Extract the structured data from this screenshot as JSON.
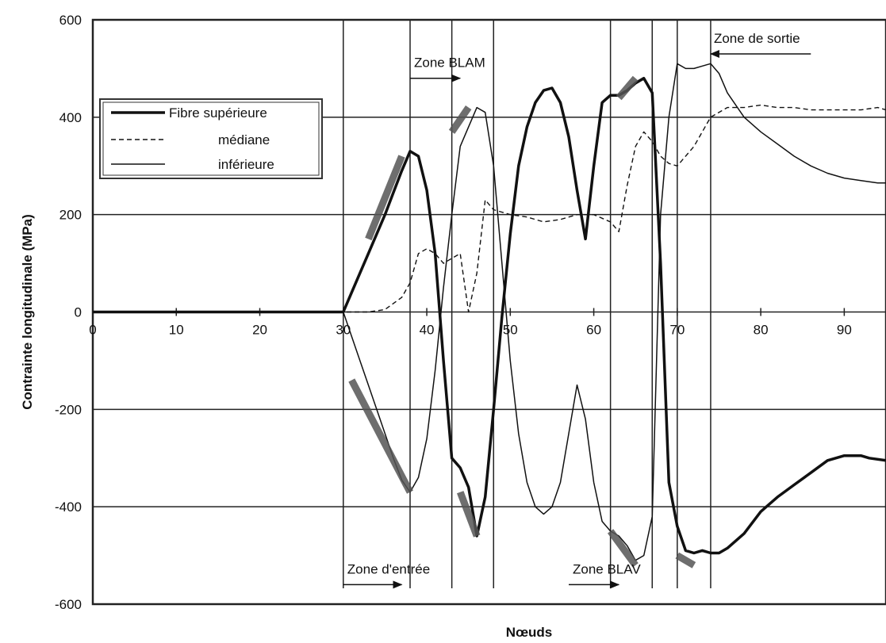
{
  "chart_data": {
    "type": "line",
    "title": "",
    "xlabel": "Nœuds",
    "ylabel": "Contrainte longitudinale (MPa)",
    "xlim": [
      0,
      95
    ],
    "ylim": [
      -600,
      600
    ],
    "x_ticks": [
      0,
      10,
      20,
      30,
      40,
      50,
      60,
      70,
      80,
      90
    ],
    "y_ticks": [
      600,
      400,
      200,
      0,
      -200,
      -400,
      -600
    ],
    "grid": "horizontal",
    "legend_position": "top-left",
    "series": [
      {
        "name": "Fibre supérieure",
        "style": "thick-solid",
        "color": "#111111",
        "points": [
          [
            0,
            0
          ],
          [
            29,
            0
          ],
          [
            30,
            0
          ],
          [
            31,
            40
          ],
          [
            32,
            80
          ],
          [
            33,
            120
          ],
          [
            34,
            160
          ],
          [
            35,
            200
          ],
          [
            36,
            245
          ],
          [
            37,
            290
          ],
          [
            38,
            330
          ],
          [
            39,
            320
          ],
          [
            40,
            250
          ],
          [
            41,
            120
          ],
          [
            42,
            -100
          ],
          [
            43,
            -300
          ],
          [
            44,
            -320
          ],
          [
            45,
            -360
          ],
          [
            46,
            -460
          ],
          [
            47,
            -380
          ],
          [
            48,
            -200
          ],
          [
            49,
            -10
          ],
          [
            50,
            160
          ],
          [
            51,
            300
          ],
          [
            52,
            380
          ],
          [
            53,
            430
          ],
          [
            54,
            455
          ],
          [
            55,
            460
          ],
          [
            56,
            430
          ],
          [
            57,
            360
          ],
          [
            58,
            250
          ],
          [
            59,
            150
          ],
          [
            60,
            300
          ],
          [
            61,
            430
          ],
          [
            62,
            445
          ],
          [
            63,
            445
          ],
          [
            64,
            455
          ],
          [
            65,
            470
          ],
          [
            66,
            480
          ],
          [
            67,
            450
          ],
          [
            68,
            100
          ],
          [
            69,
            -350
          ],
          [
            70,
            -440
          ],
          [
            71,
            -490
          ],
          [
            72,
            -495
          ],
          [
            73,
            -490
          ],
          [
            74,
            -495
          ],
          [
            75,
            -495
          ],
          [
            76,
            -485
          ],
          [
            78,
            -455
          ],
          [
            80,
            -410
          ],
          [
            82,
            -380
          ],
          [
            84,
            -355
          ],
          [
            86,
            -330
          ],
          [
            88,
            -305
          ],
          [
            90,
            -295
          ],
          [
            92,
            -295
          ],
          [
            93,
            -300
          ],
          [
            95,
            -305
          ]
        ]
      },
      {
        "name": "médiane",
        "style": "dashed",
        "color": "#111111",
        "points": [
          [
            0,
            0
          ],
          [
            33,
            0
          ],
          [
            35,
            5
          ],
          [
            37,
            30
          ],
          [
            38,
            60
          ],
          [
            39,
            120
          ],
          [
            40,
            130
          ],
          [
            41,
            120
          ],
          [
            42,
            100
          ],
          [
            43,
            110
          ],
          [
            44,
            120
          ],
          [
            45,
            0
          ],
          [
            46,
            80
          ],
          [
            47,
            230
          ],
          [
            48,
            210
          ],
          [
            50,
            200
          ],
          [
            52,
            195
          ],
          [
            54,
            185
          ],
          [
            56,
            190
          ],
          [
            58,
            200
          ],
          [
            60,
            200
          ],
          [
            62,
            185
          ],
          [
            63,
            165
          ],
          [
            64,
            260
          ],
          [
            65,
            340
          ],
          [
            66,
            370
          ],
          [
            67,
            350
          ],
          [
            68,
            320
          ],
          [
            69,
            305
          ],
          [
            70,
            300
          ],
          [
            72,
            340
          ],
          [
            74,
            400
          ],
          [
            76,
            420
          ],
          [
            78,
            420
          ],
          [
            80,
            425
          ],
          [
            82,
            420
          ],
          [
            84,
            420
          ],
          [
            86,
            415
          ],
          [
            88,
            415
          ],
          [
            90,
            415
          ],
          [
            92,
            415
          ],
          [
            94,
            420
          ],
          [
            95,
            415
          ]
        ]
      },
      {
        "name": "inférieure",
        "style": "thin-solid",
        "color": "#111111",
        "points": [
          [
            0,
            0
          ],
          [
            30,
            0
          ],
          [
            31,
            -50
          ],
          [
            32,
            -100
          ],
          [
            33,
            -150
          ],
          [
            34,
            -200
          ],
          [
            35,
            -250
          ],
          [
            36,
            -300
          ],
          [
            37,
            -345
          ],
          [
            38,
            -370
          ],
          [
            39,
            -340
          ],
          [
            40,
            -260
          ],
          [
            41,
            -120
          ],
          [
            42,
            50
          ],
          [
            43,
            200
          ],
          [
            44,
            340
          ],
          [
            45,
            380
          ],
          [
            46,
            420
          ],
          [
            47,
            410
          ],
          [
            48,
            300
          ],
          [
            49,
            100
          ],
          [
            50,
            -100
          ],
          [
            51,
            -250
          ],
          [
            52,
            -350
          ],
          [
            53,
            -400
          ],
          [
            54,
            -415
          ],
          [
            55,
            -400
          ],
          [
            56,
            -350
          ],
          [
            57,
            -250
          ],
          [
            58,
            -150
          ],
          [
            59,
            -220
          ],
          [
            60,
            -350
          ],
          [
            61,
            -430
          ],
          [
            62,
            -450
          ],
          [
            63,
            -460
          ],
          [
            64,
            -480
          ],
          [
            65,
            -510
          ],
          [
            66,
            -500
          ],
          [
            67,
            -420
          ],
          [
            68,
            200
          ],
          [
            69,
            400
          ],
          [
            70,
            510
          ],
          [
            71,
            500
          ],
          [
            72,
            500
          ],
          [
            73,
            505
          ],
          [
            74,
            510
          ],
          [
            75,
            490
          ],
          [
            76,
            450
          ],
          [
            78,
            400
          ],
          [
            80,
            370
          ],
          [
            82,
            345
          ],
          [
            84,
            320
          ],
          [
            86,
            300
          ],
          [
            88,
            285
          ],
          [
            90,
            275
          ],
          [
            92,
            270
          ],
          [
            94,
            265
          ],
          [
            95,
            265
          ]
        ]
      }
    ],
    "highlight_segments": [
      {
        "points": [
          [
            33,
            150
          ],
          [
            37,
            320
          ]
        ]
      },
      {
        "points": [
          [
            31,
            -140
          ],
          [
            38,
            -370
          ]
        ]
      },
      {
        "points": [
          [
            43,
            370
          ],
          [
            45,
            420
          ]
        ]
      },
      {
        "points": [
          [
            44,
            -370
          ],
          [
            46,
            -460
          ]
        ]
      },
      {
        "points": [
          [
            63,
            440
          ],
          [
            65,
            480
          ]
        ]
      },
      {
        "points": [
          [
            62,
            -450
          ],
          [
            65,
            -520
          ]
        ]
      },
      {
        "points": [
          [
            70,
            -500
          ],
          [
            72,
            -520
          ]
        ]
      }
    ],
    "zone_lines_x": [
      30,
      38,
      43,
      48,
      62,
      67,
      70,
      74
    ],
    "annotations": [
      {
        "label": "Zone BLAM",
        "arrow": "right",
        "x_from": 38,
        "x_to": 44,
        "y": 480
      },
      {
        "label": "Zone de sortie",
        "arrow": "left",
        "x_from": 86,
        "x_to": 74,
        "y": 530
      },
      {
        "label": "Zone d'entrée",
        "arrow": "right",
        "x_from": 30,
        "x_to": 37,
        "y": -560
      },
      {
        "label": "Zone BLAV",
        "arrow": "right",
        "x_from": 57,
        "x_to": 63,
        "y": -560
      }
    ]
  }
}
